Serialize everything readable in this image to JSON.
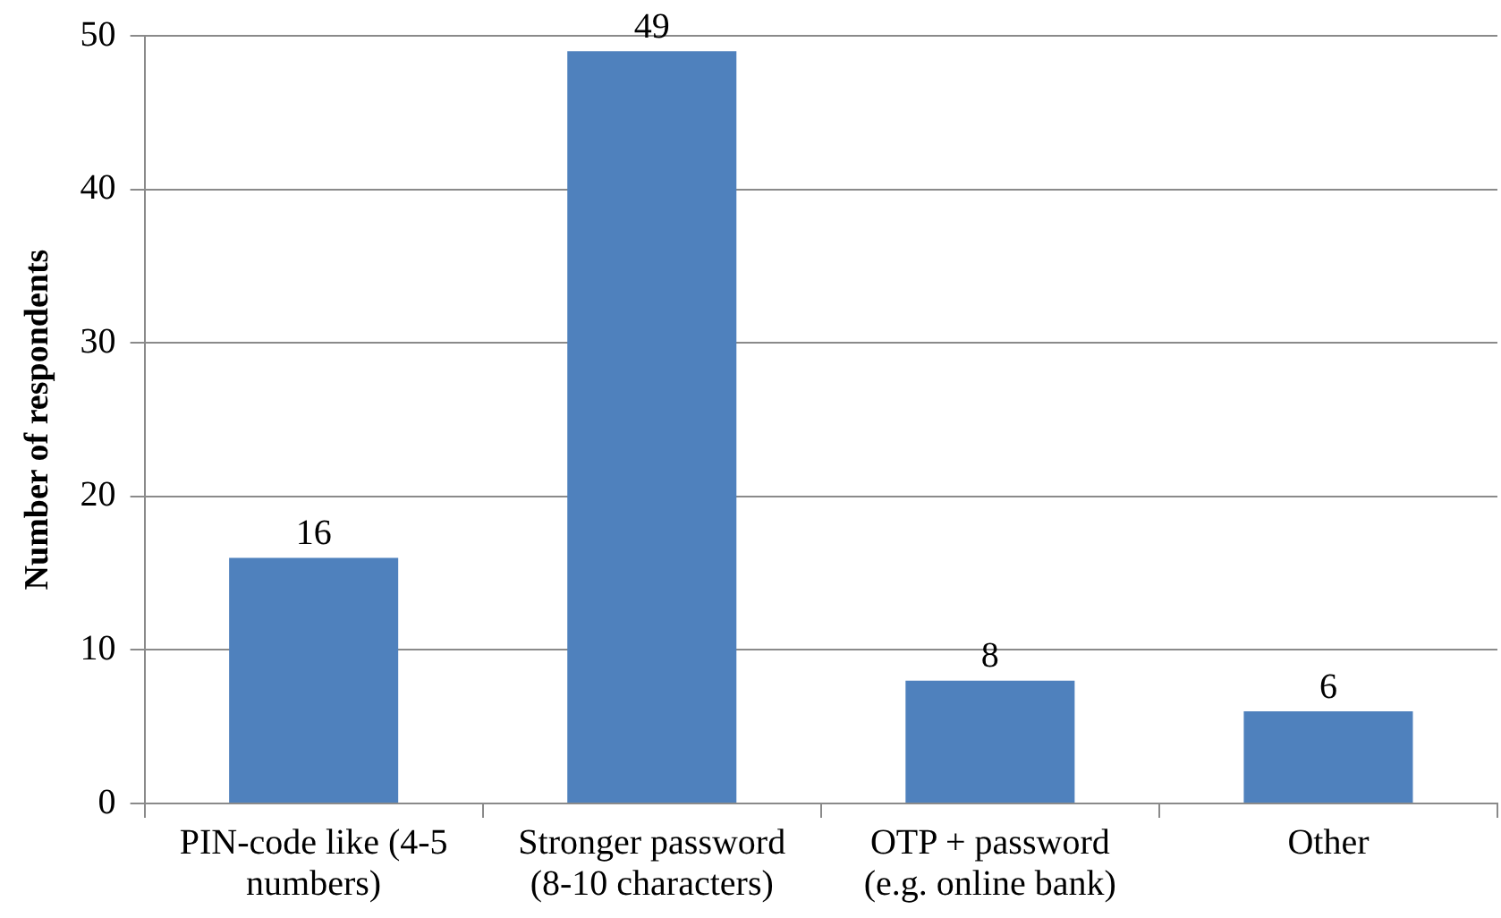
{
  "chart_data": {
    "type": "bar",
    "ylabel": "Number of respondents",
    "categories": [
      "PIN-code like (4-5 numbers)",
      "Stronger password (8-10 characters)",
      "OTP + password (e.g. online bank)",
      "Other"
    ],
    "values": [
      16,
      49,
      8,
      6
    ],
    "color": "#4f81bd",
    "ylim": [
      0,
      50
    ],
    "yticks": [
      0,
      10,
      20,
      30,
      40,
      50
    ],
    "grid": "y",
    "legend": false,
    "data_labels": true
  }
}
